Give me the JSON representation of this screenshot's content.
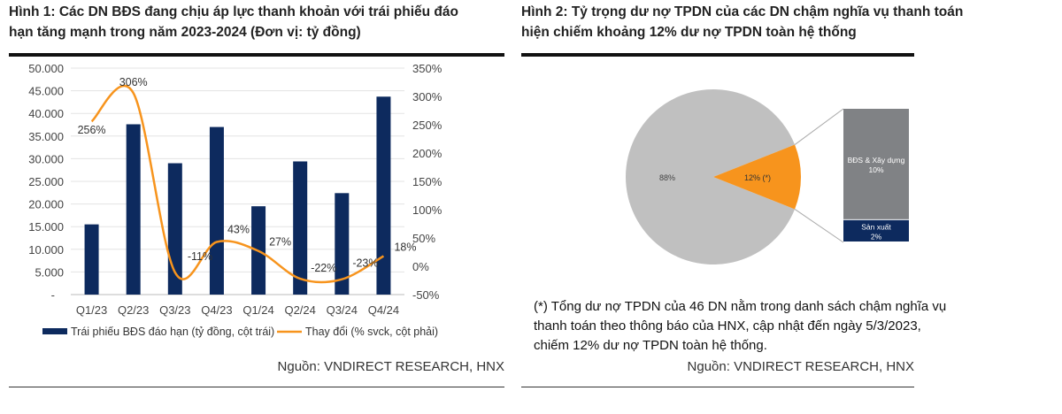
{
  "figure1": {
    "title_line1": "Hình 1: Các DN BĐS đang chịu áp lực thanh khoản với trái phiếu đáo",
    "title_line2": "hạn tăng mạnh trong năm 2023-2024 (Đơn vị: tỷ đồng)",
    "source": "Nguồn: VNDIRECT RESEARCH, HNX"
  },
  "figure2": {
    "title_line1": "Hình 2: Tỷ trọng dư nợ TPDN của các DN chậm nghĩa vụ thanh toán",
    "title_line2": "hiện chiếm khoảng 12% dư nợ TPDN toàn hệ thống",
    "note_lines": [
      "(*) Tổng dư nợ TPDN của 46 DN nằm trong danh sách chậm nghĩa vụ",
      "thanh toán theo thông báo của HNX, cập nhật đến ngày 5/3/2023,",
      "chiếm 12% dư nợ TPDN toàn hệ thống."
    ],
    "source": "Nguồn: VNDIRECT RESEARCH, HNX"
  },
  "chart_data": [
    {
      "type": "bar+line",
      "categories": [
        "Q1/23",
        "Q2/23",
        "Q3/23",
        "Q4/23",
        "Q1/24",
        "Q2/24",
        "Q3/24",
        "Q4/24"
      ],
      "series": [
        {
          "name": "Trái phiếu BĐS đáo hạn (tỷ đồng, cột trái)",
          "type": "bar",
          "axis": "left",
          "color": "#0d2a5e",
          "values": [
            15500,
            37600,
            29000,
            37000,
            19500,
            29400,
            22400,
            43700
          ]
        },
        {
          "name": "Thay đổi (% svck, cột phải)",
          "type": "line",
          "axis": "right",
          "color": "#f7941d",
          "values": [
            256,
            306,
            -11,
            43,
            27,
            -22,
            -23,
            18
          ],
          "labels": [
            "256%",
            "306%",
            "-11%",
            "43%",
            "27%",
            "-22%",
            "-23%",
            "18%"
          ]
        }
      ],
      "left_axis": {
        "range": [
          0,
          50000
        ],
        "ticks": [
          "-",
          "5.000",
          "10.000",
          "15.000",
          "20.000",
          "25.000",
          "30.000",
          "35.000",
          "40.000",
          "45.000",
          "50.000"
        ]
      },
      "right_axis": {
        "range": [
          -50,
          350
        ],
        "ticks": [
          "-50%",
          "0%",
          "50%",
          "100%",
          "150%",
          "200%",
          "250%",
          "300%",
          "350%"
        ]
      },
      "grid": true,
      "legend": "bottom"
    },
    {
      "type": "pie",
      "slices": [
        {
          "label": "88%",
          "value": 88,
          "color": "#c0c0c0"
        },
        {
          "label": "12% (*)",
          "value": 12,
          "color": "#f7941d"
        }
      ],
      "breakdown": [
        {
          "name": "BĐS & Xây dựng",
          "label": "10%",
          "value": 10,
          "color": "#808285"
        },
        {
          "name": "Sản xuất",
          "label": "2%",
          "value": 2,
          "color": "#0d2a5e"
        }
      ]
    }
  ]
}
